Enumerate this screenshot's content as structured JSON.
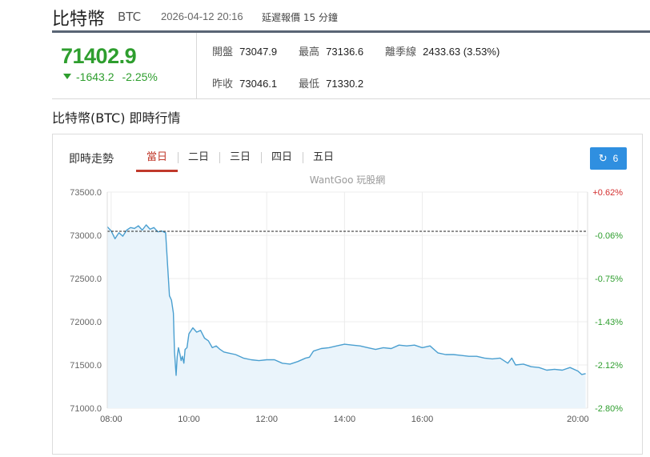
{
  "header": {
    "title": "比特幣",
    "symbol": "BTC",
    "datetime": "2026-04-12 20:16",
    "delay_note": "延遲報價 15 分鐘"
  },
  "quote": {
    "price": "71402.9",
    "change": "-1643.2",
    "change_pct": "-2.25%",
    "stats": {
      "open_label": "開盤",
      "open_value": "73047.9",
      "high_label": "最高",
      "high_value": "73136.6",
      "season_label": "離季線",
      "season_value": "2433.63 (3.53%)",
      "prev_close_label": "昨收",
      "prev_close_value": "73046.1",
      "low_label": "最低",
      "low_value": "71330.2"
    }
  },
  "section_title": "比特幣(BTC) 即時行情",
  "panel": {
    "label": "即時走勢",
    "tabs": [
      "當日",
      "二日",
      "三日",
      "四日",
      "五日"
    ],
    "active_tab": "當日",
    "refresh_label": "6",
    "watermark": "WantGoo 玩股網"
  },
  "colors": {
    "up": "#d32f2f",
    "down": "#2e9e2e",
    "line": "#4a9fd0",
    "area": "#eaf4fb",
    "accent_tab": "#c0392b",
    "refresh_button": "#2f8fe0"
  },
  "chart_data": {
    "type": "area",
    "xlabel": "",
    "ylabel": "",
    "x_ticks": [
      "08:00",
      "10:00",
      "12:00",
      "14:00",
      "16:00",
      "20:00"
    ],
    "x_tick_hours": [
      8,
      10,
      12,
      14,
      16,
      20
    ],
    "xlim_hours": [
      7.9,
      20.25
    ],
    "y_ticks": [
      "73500.0",
      "73000.0",
      "72500.0",
      "72000.0",
      "71500.0",
      "71000.0"
    ],
    "ylim": [
      71000,
      73500
    ],
    "right_ticks": [
      "+0.62%",
      "-0.06%",
      "-0.75%",
      "-1.43%",
      "-2.12%",
      "-2.80%"
    ],
    "reference_line": 73046.1,
    "grid": true,
    "series": [
      {
        "x_hours": [
          7.9,
          8.0,
          8.1,
          8.2,
          8.3,
          8.4,
          8.5,
          8.6,
          8.7,
          8.8,
          8.9,
          9.0,
          9.1,
          9.2,
          9.3,
          9.4,
          9.5,
          9.55,
          9.6,
          9.63,
          9.67,
          9.7,
          9.73,
          9.77,
          9.8,
          9.83,
          9.87,
          9.9,
          9.95,
          10.0,
          10.1,
          10.2,
          10.3,
          10.4,
          10.5,
          10.6,
          10.7,
          10.8,
          10.9,
          11.0,
          11.2,
          11.4,
          11.6,
          11.8,
          12.0,
          12.2,
          12.4,
          12.6,
          12.8,
          13.0,
          13.1,
          13.2,
          13.4,
          13.6,
          13.8,
          14.0,
          14.2,
          14.4,
          14.6,
          14.8,
          15.0,
          15.2,
          15.4,
          15.6,
          15.8,
          16.0,
          16.2,
          16.4,
          16.6,
          16.8,
          17.0,
          17.2,
          17.4,
          17.6,
          17.8,
          18.0,
          18.2,
          18.3,
          18.4,
          18.6,
          18.8,
          19.0,
          19.2,
          19.4,
          19.6,
          19.8,
          20.0,
          20.1,
          20.2
        ],
        "values": [
          73100,
          73050,
          72960,
          73030,
          72990,
          73060,
          73090,
          73080,
          73110,
          73060,
          73120,
          73070,
          73090,
          73040,
          73050,
          73030,
          72300,
          72250,
          72100,
          71650,
          71380,
          71600,
          71700,
          71620,
          71550,
          71600,
          71520,
          71680,
          71700,
          71860,
          71930,
          71880,
          71900,
          71810,
          71780,
          71700,
          71720,
          71680,
          71650,
          71640,
          71620,
          71580,
          71560,
          71550,
          71560,
          71560,
          71520,
          71510,
          71540,
          71580,
          71590,
          71660,
          71690,
          71700,
          71720,
          71740,
          71730,
          71720,
          71700,
          71680,
          71700,
          71690,
          71730,
          71720,
          71730,
          71700,
          71720,
          71640,
          71620,
          71620,
          71610,
          71600,
          71600,
          71580,
          71570,
          71580,
          71520,
          71580,
          71500,
          71510,
          71480,
          71470,
          71440,
          71450,
          71440,
          71470,
          71430,
          71390,
          71400
        ]
      }
    ]
  }
}
